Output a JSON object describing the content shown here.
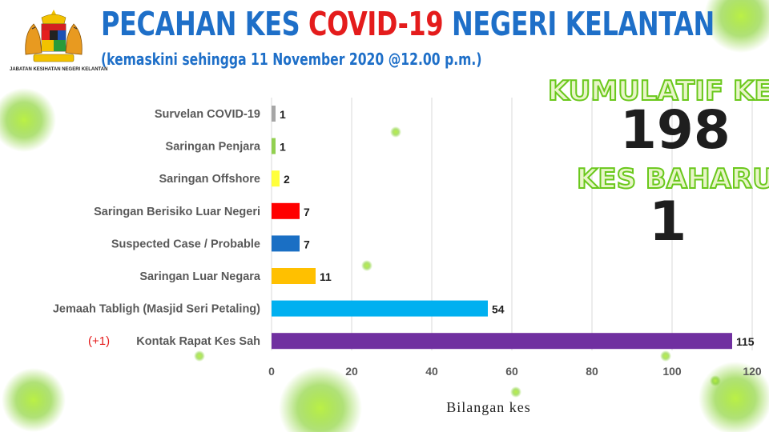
{
  "header": {
    "title_part1": "PECAHAN KES ",
    "title_part2": "COVID-19",
    "title_part3": " NEGERI KELANTAN",
    "subtitle": "(kemaskini sehingga 11 November 2020 @12.00 p.m.)"
  },
  "logo": {
    "icon": "malaysia-coat-of-arms-icon",
    "caption": "JABATAN KESIHATAN NEGERI KELANTAN"
  },
  "stats": {
    "kumulatif_label": "KUMULATIF KES",
    "kumulatif_value": "198",
    "baharu_label": "KES BAHARU",
    "baharu_value": "1"
  },
  "colors": {
    "title_blue": "#1e6fc8",
    "title_red": "#e41c1c",
    "stat_outline": "#6ac81c"
  },
  "chart_data": {
    "type": "bar",
    "orientation": "horizontal",
    "categories": [
      "Survelan COVID-19",
      "Saringan Penjara",
      "Saringan Offshore",
      "Saringan Berisiko Luar Negeri",
      "Suspected Case / Probable",
      "Saringan Luar Negara",
      "Jemaah Tabligh (Masjid Seri Petaling)",
      "Kontak Rapat Kes Sah"
    ],
    "category_annotations": [
      "",
      "",
      "",
      "",
      "",
      "",
      "",
      "(+1)"
    ],
    "values": [
      1,
      1,
      2,
      7,
      7,
      11,
      54,
      115
    ],
    "bar_colors": [
      "#a6a6a6",
      "#92d050",
      "#ffff3c",
      "#ff0000",
      "#1a6fc4",
      "#ffc000",
      "#00b0f0",
      "#7030a0"
    ],
    "xlabel": "Bilangan kes",
    "xlim": [
      0,
      120
    ],
    "xticks": [
      0,
      20,
      40,
      60,
      80,
      100,
      120
    ],
    "grid": true
  }
}
